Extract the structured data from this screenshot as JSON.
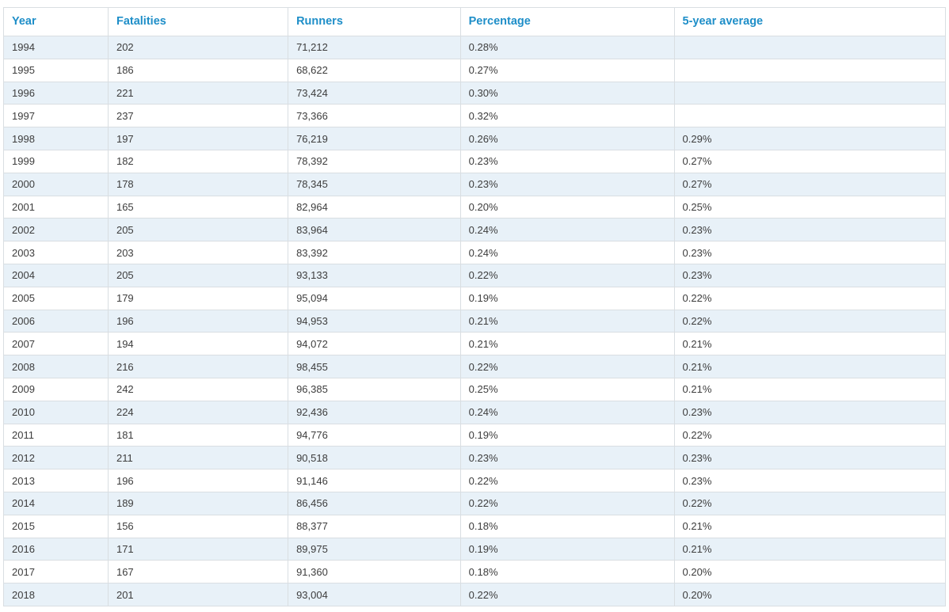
{
  "table": {
    "headers": [
      "Year",
      "Fatalities",
      "Runners",
      "Percentage",
      "5-year average"
    ],
    "rows": [
      [
        "1994",
        "202",
        "71,212",
        "0.28%",
        ""
      ],
      [
        "1995",
        "186",
        "68,622",
        "0.27%",
        ""
      ],
      [
        "1996",
        "221",
        "73,424",
        "0.30%",
        ""
      ],
      [
        "1997",
        "237",
        "73,366",
        "0.32%",
        ""
      ],
      [
        "1998",
        "197",
        "76,219",
        "0.26%",
        "0.29%"
      ],
      [
        "1999",
        "182",
        "78,392",
        "0.23%",
        "0.27%"
      ],
      [
        "2000",
        "178",
        "78,345",
        "0.23%",
        "0.27%"
      ],
      [
        "2001",
        "165",
        "82,964",
        "0.20%",
        "0.25%"
      ],
      [
        "2002",
        "205",
        "83,964",
        "0.24%",
        "0.23%"
      ],
      [
        "2003",
        "203",
        "83,392",
        "0.24%",
        "0.23%"
      ],
      [
        "2004",
        "205",
        "93,133",
        "0.22%",
        "0.23%"
      ],
      [
        "2005",
        "179",
        "95,094",
        "0.19%",
        "0.22%"
      ],
      [
        "2006",
        "196",
        "94,953",
        "0.21%",
        "0.22%"
      ],
      [
        "2007",
        "194",
        "94,072",
        "0.21%",
        "0.21%"
      ],
      [
        "2008",
        "216",
        "98,455",
        "0.22%",
        "0.21%"
      ],
      [
        "2009",
        "242",
        "96,385",
        "0.25%",
        "0.21%"
      ],
      [
        "2010",
        "224",
        "92,436",
        "0.24%",
        "0.23%"
      ],
      [
        "2011",
        "181",
        "94,776",
        "0.19%",
        "0.22%"
      ],
      [
        "2012",
        "211",
        "90,518",
        "0.23%",
        "0.23%"
      ],
      [
        "2013",
        "196",
        "91,146",
        "0.22%",
        "0.23%"
      ],
      [
        "2014",
        "189",
        "86,456",
        "0.22%",
        "0.22%"
      ],
      [
        "2015",
        "156",
        "88,377",
        "0.18%",
        "0.21%"
      ],
      [
        "2016",
        "171",
        "89,975",
        "0.19%",
        "0.21%"
      ],
      [
        "2017",
        "167",
        "91,360",
        "0.18%",
        "0.20%"
      ],
      [
        "2018",
        "201",
        "93,004",
        "0.22%",
        "0.20%"
      ]
    ]
  },
  "colors": {
    "header_text": "#1e8ec8",
    "row_alt_background": "#e8f1f8",
    "row_background": "#ffffff",
    "border": "#d9dee2",
    "cell_text": "#3d3d3d"
  },
  "chart_data": {
    "type": "table",
    "title": "",
    "columns": [
      "Year",
      "Fatalities",
      "Runners",
      "Percentage",
      "5-year average"
    ],
    "years": [
      1994,
      1995,
      1996,
      1997,
      1998,
      1999,
      2000,
      2001,
      2002,
      2003,
      2004,
      2005,
      2006,
      2007,
      2008,
      2009,
      2010,
      2011,
      2012,
      2013,
      2014,
      2015,
      2016,
      2017,
      2018
    ],
    "fatalities": [
      202,
      186,
      221,
      237,
      197,
      182,
      178,
      165,
      205,
      203,
      205,
      179,
      196,
      194,
      216,
      242,
      224,
      181,
      211,
      196,
      189,
      156,
      171,
      167,
      201
    ],
    "runners": [
      71212,
      68622,
      73424,
      73366,
      76219,
      78392,
      78345,
      82964,
      83964,
      83392,
      93133,
      95094,
      94953,
      94072,
      98455,
      96385,
      92436,
      94776,
      90518,
      91146,
      86456,
      88377,
      89975,
      91360,
      93004
    ],
    "percentage": [
      0.28,
      0.27,
      0.3,
      0.32,
      0.26,
      0.23,
      0.23,
      0.2,
      0.24,
      0.24,
      0.22,
      0.19,
      0.21,
      0.21,
      0.22,
      0.25,
      0.24,
      0.19,
      0.23,
      0.22,
      0.22,
      0.18,
      0.19,
      0.18,
      0.22
    ],
    "five_year_average": [
      null,
      null,
      null,
      null,
      0.29,
      0.27,
      0.27,
      0.25,
      0.23,
      0.23,
      0.23,
      0.22,
      0.22,
      0.21,
      0.21,
      0.21,
      0.23,
      0.22,
      0.23,
      0.23,
      0.22,
      0.21,
      0.21,
      0.2,
      0.2
    ]
  }
}
